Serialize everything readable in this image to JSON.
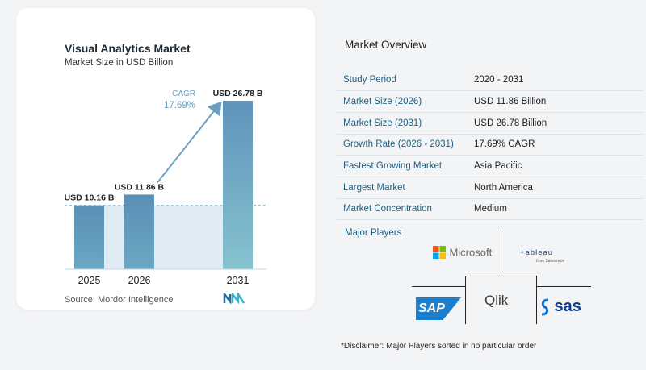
{
  "chart_data": {
    "type": "bar",
    "title": "Visual Analytics Market",
    "subtitle": "Market Size in USD Billion",
    "categories": [
      "2025",
      "2026",
      "2031"
    ],
    "values": [
      10.16,
      11.86,
      26.78
    ],
    "value_labels": [
      "USD 10.16 B",
      "USD 11.86 B",
      "USD 26.78 B"
    ],
    "cagr_label": "CAGR",
    "cagr_value": "17.69%",
    "colors": [
      "#5b8fb5",
      "#5b8fb5",
      "#7aa5c5"
    ],
    "source": "Source:  Mordor Intelligence"
  },
  "overview": {
    "title": "Market Overview",
    "rows": [
      {
        "label": "Study Period",
        "value": "2020 - 2031"
      },
      {
        "label": "Market Size (2026)",
        "value": "USD 11.86 Billion"
      },
      {
        "label": "Market Size (2031)",
        "value": "USD 26.78 Billion"
      },
      {
        "label": "Growth Rate (2026 - 2031)",
        "value": "17.69% CAGR"
      },
      {
        "label": "Fastest Growing Market",
        "value": "Asia Pacific"
      },
      {
        "label": "Largest Market",
        "value": "North America"
      },
      {
        "label": "Market Concentration",
        "value": "Medium"
      }
    ]
  },
  "players": {
    "title": "Major Players",
    "microsoft": "Microsoft",
    "tableau": "+ableau",
    "tableau_sub": "from Salesforce",
    "sap": "SAP",
    "qlik": "Qlik",
    "sas": "sas",
    "disclaimer": "*Disclaimer: Major Players sorted in no particular order"
  }
}
